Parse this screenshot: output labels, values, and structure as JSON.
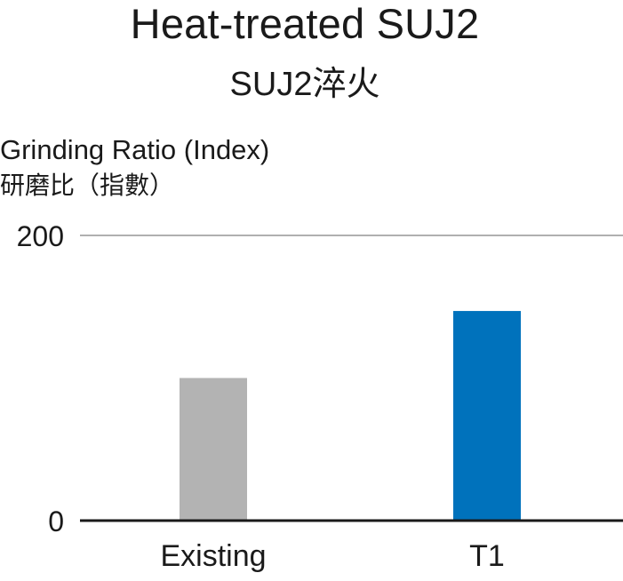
{
  "chart_data": {
    "type": "bar",
    "title": "Heat-treated SUJ2",
    "subtitle": "SUJ2淬火",
    "ylabel": "Grinding Ratio (Index)",
    "ylabel_zh": "研磨比（指數）",
    "xlabel": "",
    "categories": [
      "Existing",
      "T1"
    ],
    "values": [
      100,
      147
    ],
    "bar_colors": [
      "#b3b3b3",
      "#0072bc"
    ],
    "ylim": [
      0,
      200
    ],
    "yticks": [
      "0",
      "200"
    ],
    "grid": true
  }
}
